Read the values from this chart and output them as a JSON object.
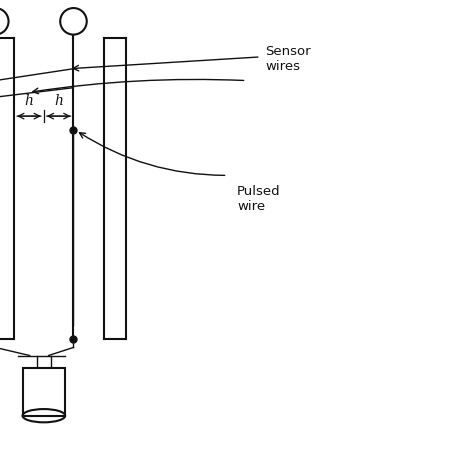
{
  "bg_color": "#ffffff",
  "line_color": "#111111",
  "text_color": "#111111",
  "sensor_label": "Sensor\nwires",
  "pulsed_label": "Pulsed\nwire",
  "h_label": "h",
  "fig_width": 4.74,
  "fig_height": 4.74,
  "dpi": 100,
  "xlim": [
    0,
    10
  ],
  "ylim": [
    0,
    10
  ]
}
